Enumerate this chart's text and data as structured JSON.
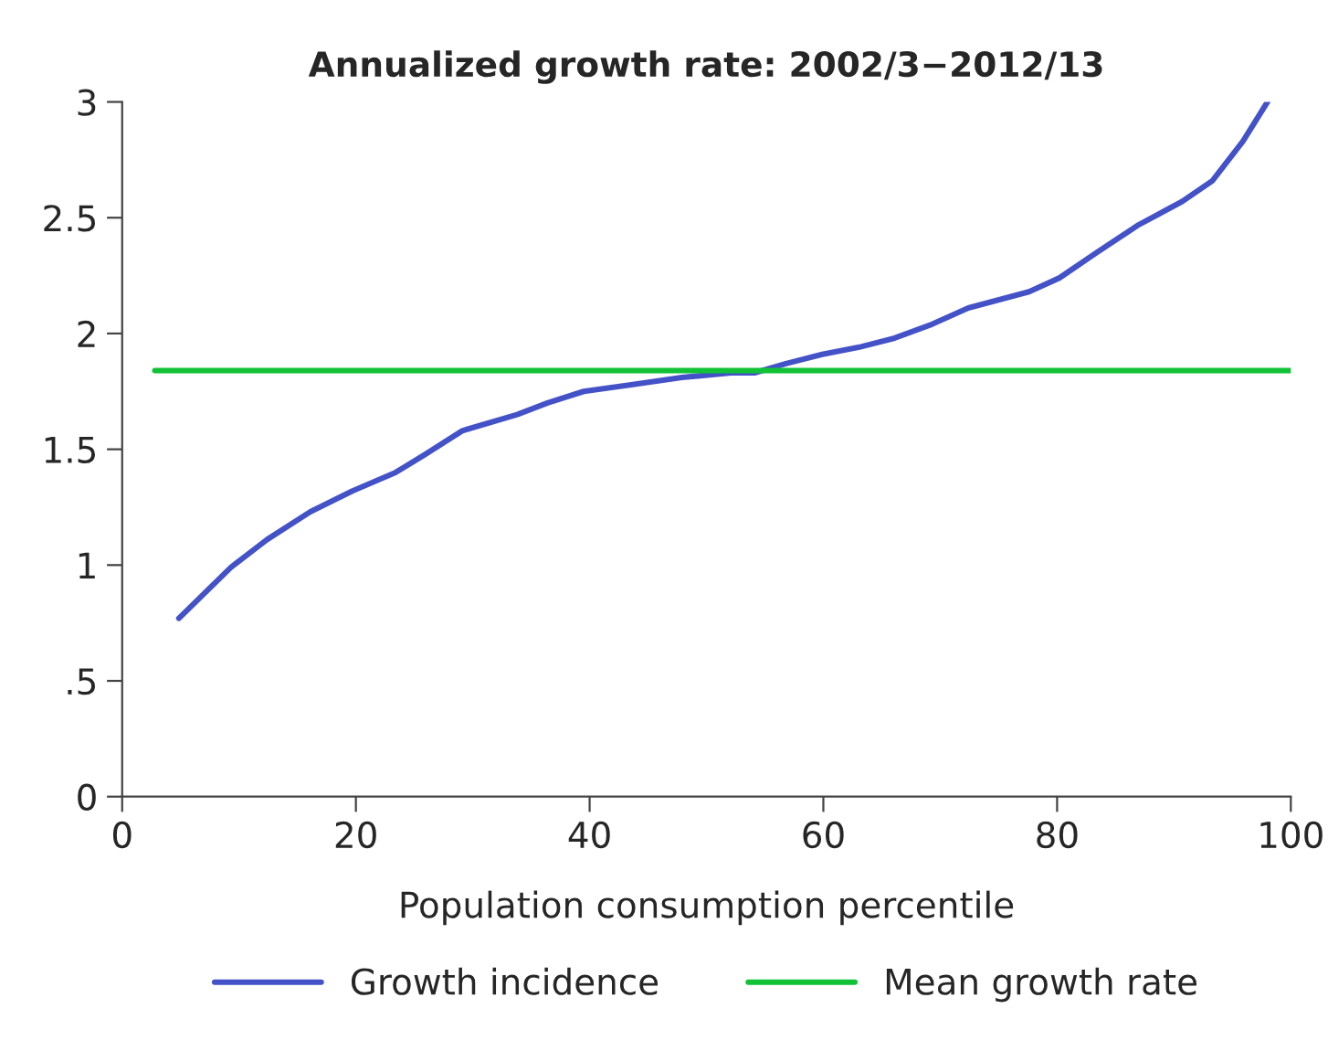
{
  "chart_data": {
    "type": "line",
    "title": "Annualized growth rate: 2002/3−2012/13",
    "xlabel": "Population consumption percentile",
    "xlim": [
      0,
      100
    ],
    "xticks": [
      0,
      20,
      40,
      60,
      80,
      100
    ],
    "ylim": [
      0,
      3
    ],
    "yticks": [
      0,
      {
        "value": 0.5,
        "label": ".5"
      },
      1,
      1.5,
      2,
      2.5,
      3
    ],
    "grid": false,
    "legend": "bottom",
    "marker": "none",
    "line_style": "solid",
    "series": [
      {
        "name": "Growth incidence",
        "color": "#4452c8",
        "x": [
          4.85,
          9.3,
          12.4,
          16.1,
          19.7,
          23.4,
          26.0,
          29.1,
          33.8,
          36.4,
          39.5,
          43.7,
          47.9,
          52.1,
          54.1,
          56.8,
          59.9,
          63.0,
          66.1,
          69.3,
          72.4,
          77.6,
          80.2,
          83.4,
          87.0,
          90.7,
          93.3,
          95.9,
          98.0
        ],
        "values": [
          0.77,
          0.99,
          1.11,
          1.23,
          1.32,
          1.4,
          1.48,
          1.58,
          1.65,
          1.7,
          1.75,
          1.78,
          1.81,
          1.83,
          1.83,
          1.87,
          1.91,
          1.94,
          1.98,
          2.04,
          2.11,
          2.18,
          2.24,
          2.35,
          2.47,
          2.57,
          2.66,
          2.83,
          3.0
        ]
      },
      {
        "name": "Mean growth rate",
        "color": "#11c237",
        "x": [
          2.8,
          100
        ],
        "values": [
          1.84,
          1.84
        ]
      }
    ]
  }
}
